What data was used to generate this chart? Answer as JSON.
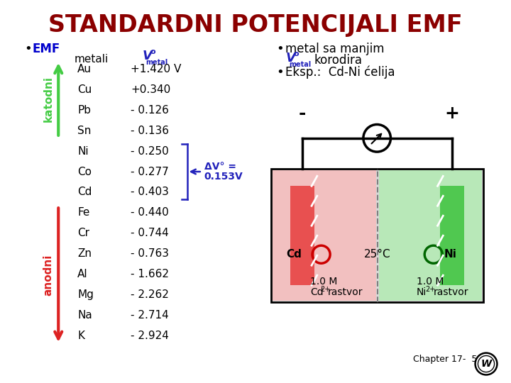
{
  "title": "STANDARDNI POTENCIJALI EMF",
  "title_color": "#8B0000",
  "background_color": "#ffffff",
  "metals": [
    "Au",
    "Cu",
    "Pb",
    "Sn",
    "Ni",
    "Co",
    "Cd",
    "Fe",
    "Cr",
    "Zn",
    "Al",
    "Mg",
    "Na",
    "K"
  ],
  "potentials": [
    "+1.420 V",
    "+0.340",
    "- 0.126",
    "- 0.136",
    "- 0.250",
    "- 0.277",
    "- 0.403",
    "- 0.440",
    "- 0.744",
    "- 0.763",
    "- 1.662",
    "- 2.262",
    "- 2.714",
    "- 2.924"
  ],
  "emf_bullet_color": "#0000cc",
  "katodni_color": "#44cc44",
  "anodni_color": "#dd2222",
  "vmetal_color": "#2222bb",
  "arrow_color": "#2222bb",
  "chapter_text": "Chapter 17-  5"
}
